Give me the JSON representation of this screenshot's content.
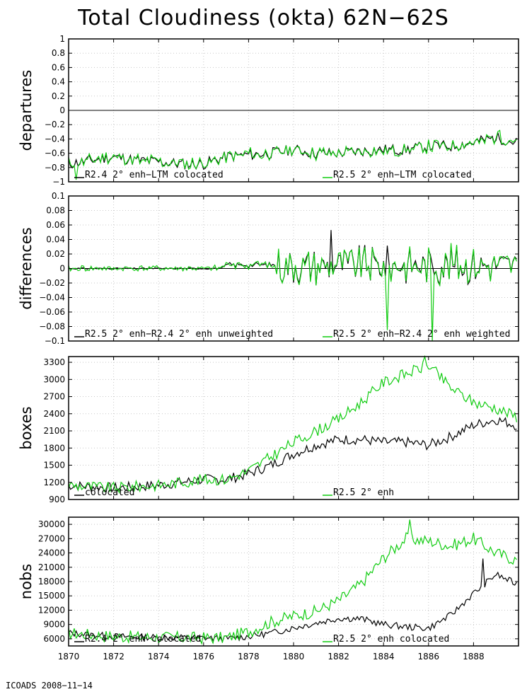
{
  "page": {
    "title": "Total Cloudiness (okta) 62N−62S",
    "footer": "ICOADS 2008−11−14"
  },
  "colors": {
    "series_a": "#000000",
    "series_b": "#11cc11",
    "zero_line": "#000000",
    "grid": "#c8c8c8"
  },
  "xaxis": {
    "range": [
      1870,
      1890
    ],
    "ticks": [
      1870,
      1872,
      1874,
      1876,
      1878,
      1880,
      1882,
      1884,
      1886,
      1888
    ],
    "tick_labels": [
      "1870",
      "1872",
      "1874",
      "1876",
      "1878",
      "1880",
      "1882",
      "1884",
      "1886",
      "1888"
    ]
  },
  "chart_data": [
    {
      "type": "line",
      "ylabel": "departures",
      "ylim": [
        -1,
        1
      ],
      "yticks": [
        -1,
        -0.8,
        -0.6,
        -0.4,
        -0.2,
        0,
        0.2,
        0.4,
        0.6,
        0.8,
        1
      ],
      "ytick_labels": [
        "−1",
        "−0.8",
        "−0.6",
        "−0.4",
        "−0.2",
        "0",
        "0.2",
        "0.4",
        "0.6",
        "0.8",
        "1"
      ],
      "zero_line": true,
      "series": [
        {
          "name": "R2.4 2° enh−LTM colocated",
          "anchors": [
            [
              1870,
              -0.75
            ],
            [
              1871,
              -0.7
            ],
            [
              1872,
              -0.65
            ],
            [
              1873,
              -0.7
            ],
            [
              1874,
              -0.72
            ],
            [
              1875,
              -0.75
            ],
            [
              1876,
              -0.75
            ],
            [
              1877,
              -0.65
            ],
            [
              1878,
              -0.62
            ],
            [
              1879,
              -0.6
            ],
            [
              1880,
              -0.55
            ],
            [
              1881,
              -0.6
            ],
            [
              1882,
              -0.6
            ],
            [
              1883,
              -0.57
            ],
            [
              1884,
              -0.55
            ],
            [
              1885,
              -0.55
            ],
            [
              1886,
              -0.5
            ],
            [
              1887,
              -0.5
            ],
            [
              1888,
              -0.45
            ],
            [
              1889,
              -0.38
            ],
            [
              1889.9,
              -0.45
            ]
          ],
          "noise": 0.08,
          "seed": 11
        },
        {
          "name": "R2.5 2° enh−LTM colocated",
          "derive": {
            "from": 0,
            "noise": 0.035,
            "seed": 23
          }
        }
      ],
      "peaks": [
        {
          "series": 1,
          "x": 1889.2,
          "y": -0.28
        },
        {
          "series": 1,
          "x": 1870.3,
          "y": -0.97
        }
      ]
    },
    {
      "type": "line",
      "ylabel": "differences",
      "ylim": [
        -0.1,
        0.1
      ],
      "yticks": [
        -0.1,
        -0.08,
        -0.06,
        -0.04,
        -0.02,
        0,
        0.02,
        0.04,
        0.06,
        0.08,
        0.1
      ],
      "ytick_labels": [
        "−0.1",
        "−0.08",
        "−0.06",
        "−0.04",
        "−0.02",
        "0",
        "0.02",
        "0.04",
        "0.06",
        "0.08",
        "0.1"
      ],
      "zero_line": true,
      "series": [
        {
          "name": "R2.5 2° enh−R2.4 2° enh unweighted",
          "anchors": [
            [
              1870,
              0
            ],
            [
              1876.8,
              0
            ],
            [
              1877,
              0.005
            ],
            [
              1890,
              0.005
            ]
          ],
          "noise": 0.0,
          "seed": 5,
          "spiky": {
            "start": 1877,
            "amp_early": 0.004,
            "amp": 0.028,
            "amp_from": 1879.2,
            "seed": 31
          }
        },
        {
          "name": "R2.5 2° enh−R2.4 2° enh weighted",
          "derive": {
            "from": 0,
            "noise": 0.004,
            "seed": 41
          }
        }
      ],
      "peaks": [
        {
          "series": 1,
          "x": 1886.2,
          "y": -0.1
        },
        {
          "series": 1,
          "x": 1884.2,
          "y": -0.085
        },
        {
          "series": 0,
          "x": 1881.7,
          "y": 0.053
        }
      ]
    },
    {
      "type": "line",
      "ylabel": "boxes",
      "ylim": [
        900,
        3400
      ],
      "yticks": [
        900,
        1200,
        1500,
        1800,
        2100,
        2400,
        2700,
        3000,
        3300
      ],
      "ytick_labels": [
        "900",
        "1200",
        "1500",
        "1800",
        "2100",
        "2400",
        "2700",
        "3000",
        "3300"
      ],
      "zero_line": false,
      "series": [
        {
          "name": "colocated",
          "anchors": [
            [
              1870,
              1150
            ],
            [
              1872,
              1100
            ],
            [
              1874,
              1150
            ],
            [
              1876,
              1250
            ],
            [
              1877,
              1250
            ],
            [
              1878,
              1350
            ],
            [
              1879,
              1500
            ],
            [
              1880,
              1700
            ],
            [
              1881,
              1850
            ],
            [
              1882,
              1950
            ],
            [
              1883,
              1950
            ],
            [
              1884,
              1900
            ],
            [
              1885,
              1900
            ],
            [
              1886,
              1850
            ],
            [
              1887,
              2000
            ],
            [
              1888,
              2200
            ],
            [
              1889,
              2300
            ],
            [
              1889.9,
              2200
            ]
          ],
          "noise": 90,
          "seed": 7
        },
        {
          "name": "R2.5 2° enh",
          "anchors": [
            [
              1870,
              1150
            ],
            [
              1872,
              1100
            ],
            [
              1874,
              1150
            ],
            [
              1876,
              1250
            ],
            [
              1877,
              1250
            ],
            [
              1878,
              1400
            ],
            [
              1879,
              1650
            ],
            [
              1880,
              1900
            ],
            [
              1881,
              2100
            ],
            [
              1882,
              2300
            ],
            [
              1883,
              2600
            ],
            [
              1884,
              2950
            ],
            [
              1885,
              3100
            ],
            [
              1886,
              3250
            ],
            [
              1887,
              2850
            ],
            [
              1888,
              2600
            ],
            [
              1889,
              2500
            ],
            [
              1889.9,
              2350
            ]
          ],
          "noise": 100,
          "seed": 9
        }
      ],
      "peaks": [
        {
          "series": 1,
          "x": 1885.8,
          "y": 3420
        }
      ]
    },
    {
      "type": "line",
      "ylabel": "nobs",
      "ylim": [
        4500,
        31500
      ],
      "yticks": [
        6000,
        9000,
        12000,
        15000,
        18000,
        21000,
        24000,
        27000,
        30000
      ],
      "ytick_labels": [
        "6000",
        "9000",
        "12000",
        "15000",
        "18000",
        "21000",
        "24000",
        "27000",
        "30000"
      ],
      "zero_line": false,
      "series": [
        {
          "name": "R2.4 2° enh colocated",
          "anchors": [
            [
              1870,
              7200
            ],
            [
              1872,
              6500
            ],
            [
              1874,
              6300
            ],
            [
              1876,
              6200
            ],
            [
              1877,
              6000
            ],
            [
              1878,
              6500
            ],
            [
              1879,
              7200
            ],
            [
              1880,
              8300
            ],
            [
              1881,
              9300
            ],
            [
              1882,
              10300
            ],
            [
              1883,
              10200
            ],
            [
              1884,
              9000
            ],
            [
              1885,
              8500
            ],
            [
              1886,
              8200
            ],
            [
              1887,
              11000
            ],
            [
              1888,
              15500
            ],
            [
              1889,
              19500
            ],
            [
              1889.9,
              17500
            ]
          ],
          "noise": 700,
          "seed": 13
        },
        {
          "name": "R2.5 2° enh colocated",
          "anchors": [
            [
              1870,
              7200
            ],
            [
              1872,
              6500
            ],
            [
              1874,
              6300
            ],
            [
              1876,
              6200
            ],
            [
              1877,
              6200
            ],
            [
              1878,
              7500
            ],
            [
              1879,
              9500
            ],
            [
              1880,
              10800
            ],
            [
              1881,
              11800
            ],
            [
              1882,
              14000
            ],
            [
              1883,
              17500
            ],
            [
              1884,
              23000
            ],
            [
              1885,
              27000
            ],
            [
              1886,
              26500
            ],
            [
              1887,
              25500
            ],
            [
              1888,
              27000
            ],
            [
              1889,
              24000
            ],
            [
              1889.9,
              22500
            ]
          ],
          "noise": 1300,
          "seed": 17
        }
      ],
      "peaks": [
        {
          "series": 1,
          "x": 1885.2,
          "y": 31000
        },
        {
          "series": 0,
          "x": 1888.4,
          "y": 22800
        }
      ]
    }
  ]
}
